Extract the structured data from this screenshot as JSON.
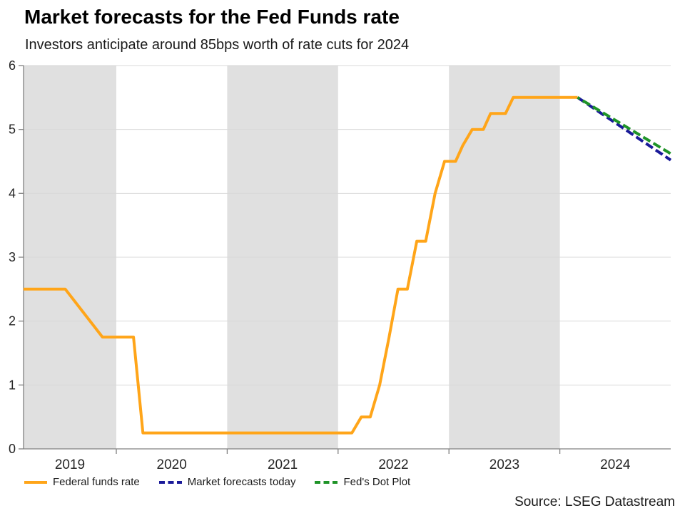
{
  "title": "Market forecasts for the Fed Funds rate",
  "subtitle": "Investors anticipate around 85bps worth of rate cuts for 2024",
  "source": "Source: LSEG Datastream",
  "colors": {
    "band": "#E0E0E0",
    "gridline": "#D8D8D8",
    "axis": "#808080",
    "tick_text": "#262626"
  },
  "chart_data": {
    "type": "line",
    "title": "Market forecasts for the Fed Funds rate",
    "subtitle": "Investors anticipate around 85bps worth of rate cuts for 2024",
    "x_axis": {
      "labels": [
        "2019",
        "2020",
        "2021",
        "2022",
        "2023",
        "2024"
      ],
      "first_label_year": 2019,
      "min_year": 2019.163,
      "max_year": 2025.0,
      "tick_boundary_years": [
        2020,
        2021,
        2022,
        2023,
        2024
      ]
    },
    "y_axis": {
      "min": 0,
      "max": 6,
      "tick_step": 1,
      "tick_labels": [
        "0",
        "1",
        "2",
        "3",
        "4",
        "5",
        "6"
      ]
    },
    "shaded_years": [
      2019,
      2021,
      2023
    ],
    "grid": true,
    "legend_position": "bottom",
    "series": [
      {
        "name": "Federal funds rate",
        "color": "#FFA519",
        "style": "solid",
        "points": [
          [
            2019.163,
            2.5
          ],
          [
            2019.54,
            2.5
          ],
          [
            2019.875,
            1.75
          ],
          [
            2020.155,
            1.75
          ],
          [
            2020.24,
            0.25
          ],
          [
            2022.125,
            0.25
          ],
          [
            2022.21,
            0.5
          ],
          [
            2022.29,
            0.5
          ],
          [
            2022.375,
            1.0
          ],
          [
            2022.46,
            1.75
          ],
          [
            2022.54,
            2.5
          ],
          [
            2022.625,
            2.5
          ],
          [
            2022.71,
            3.25
          ],
          [
            2022.79,
            3.25
          ],
          [
            2022.875,
            4.0
          ],
          [
            2022.96,
            4.5
          ],
          [
            2023.06,
            4.5
          ],
          [
            2023.125,
            4.75
          ],
          [
            2023.21,
            5.0
          ],
          [
            2023.31,
            5.0
          ],
          [
            2023.375,
            5.25
          ],
          [
            2023.51,
            5.25
          ],
          [
            2023.58,
            5.5
          ],
          [
            2024.16,
            5.5
          ]
        ]
      },
      {
        "name": "Market forecasts today",
        "color": "#1A1A99",
        "style": "dashed",
        "points": [
          [
            2024.16,
            5.5
          ],
          [
            2025.0,
            4.52
          ]
        ]
      },
      {
        "name": "Fed's Dot Plot",
        "color": "#1F9428",
        "style": "dashed",
        "points": [
          [
            2024.16,
            5.5
          ],
          [
            2025.0,
            4.62
          ]
        ]
      }
    ]
  }
}
